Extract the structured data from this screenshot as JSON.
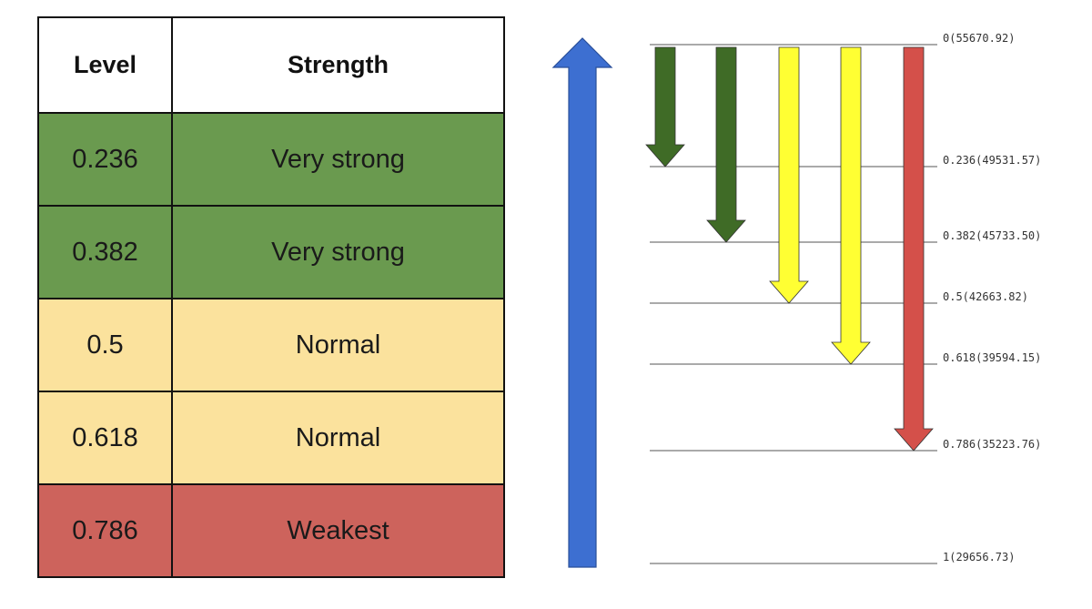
{
  "table": {
    "headers": {
      "level": "Level",
      "strength": "Strength"
    },
    "rows": [
      {
        "level": "0.236",
        "strength": "Very strong",
        "color": "#6a9a4f"
      },
      {
        "level": "0.382",
        "strength": "Very strong",
        "color": "#6a9a4f"
      },
      {
        "level": "0.5",
        "strength": "Normal",
        "color": "#fbe29d"
      },
      {
        "level": "0.618",
        "strength": "Normal",
        "color": "#fbe29d"
      },
      {
        "level": "0.786",
        "strength": "Weakest",
        "color": "#cd635c"
      }
    ]
  },
  "diagram": {
    "up_arrow_color": "#3d6fd1",
    "levels": [
      {
        "ratio": 0,
        "label": "0(55670.92)"
      },
      {
        "ratio": 0.236,
        "label": "0.236(49531.57)"
      },
      {
        "ratio": 0.382,
        "label": "0.382(45733.50)"
      },
      {
        "ratio": 0.5,
        "label": "0.5(42663.82)"
      },
      {
        "ratio": 0.618,
        "label": "0.618(39594.15)"
      },
      {
        "ratio": 0.786,
        "label": "0.786(35223.76)"
      },
      {
        "ratio": 1,
        "label": "1(29656.73)"
      }
    ],
    "down_arrows": [
      {
        "target_ratio": 0.236,
        "color": "#3f6b26"
      },
      {
        "target_ratio": 0.382,
        "color": "#3f6b26"
      },
      {
        "target_ratio": 0.5,
        "color": "#ffff33"
      },
      {
        "target_ratio": 0.618,
        "color": "#ffff33"
      },
      {
        "target_ratio": 0.786,
        "color": "#d4504a"
      }
    ]
  }
}
